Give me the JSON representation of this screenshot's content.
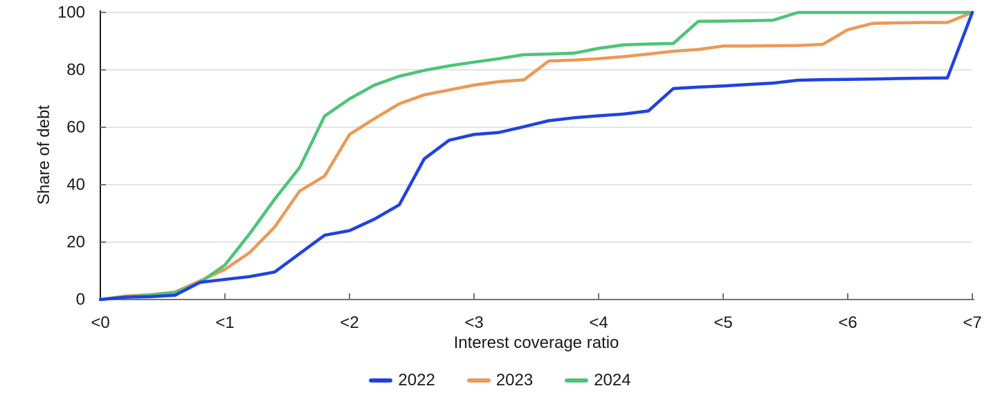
{
  "chart_data": {
    "type": "line",
    "title": "",
    "xlabel": "Interest coverage ratio",
    "ylabel": "Share of debt",
    "xlim": [
      0,
      7
    ],
    "ylim": [
      0,
      100
    ],
    "x_ticks": [
      0,
      1,
      2,
      3,
      4,
      5,
      6,
      7
    ],
    "x_tick_labels": [
      "<0",
      "<1",
      "<2",
      "<3",
      "<4",
      "<5",
      "<6",
      "<7"
    ],
    "y_ticks": [
      0,
      20,
      40,
      60,
      80,
      100
    ],
    "y_tick_labels": [
      "0",
      "20",
      "40",
      "60",
      "80",
      "100"
    ],
    "grid": "horizontal",
    "legend_position": "bottom-center",
    "x": [
      0,
      0.2,
      0.4,
      0.6,
      0.8,
      1,
      1.2,
      1.4,
      1.6,
      1.8,
      2,
      2.2,
      2.4,
      2.6,
      2.8,
      3,
      3.2,
      3.4,
      3.6,
      3.8,
      4,
      4.2,
      4.4,
      4.6,
      4.8,
      5,
      5.2,
      5.4,
      5.6,
      5.8,
      6,
      6.2,
      6.4,
      6.6,
      6.8,
      7
    ],
    "series": [
      {
        "name": "2022",
        "color": "#2042e0",
        "values": [
          0,
          0.8,
          1,
          1.5,
          6,
          7,
          8,
          9.6,
          16,
          22.4,
          24,
          28,
          33,
          49,
          55.5,
          57.5,
          58.2,
          60.2,
          62.3,
          63.3,
          64,
          64.6,
          65.7,
          73.5,
          74,
          74.4,
          74.9,
          75.4,
          76.4,
          76.6,
          76.7,
          76.8,
          77,
          77.1,
          77.2,
          100
        ]
      },
      {
        "name": "2023",
        "color": "#eb9a57",
        "values": [
          0,
          1.2,
          1.7,
          2.6,
          6.5,
          10.5,
          16.4,
          25.3,
          37.8,
          43,
          57.5,
          63,
          68.2,
          71.3,
          73,
          74.7,
          75.9,
          76.5,
          83.1,
          83.4,
          83.9,
          84.6,
          85.5,
          86.5,
          87.1,
          88.3,
          88.3,
          88.4,
          88.5,
          88.9,
          94,
          96.2,
          96.4,
          96.5,
          96.5,
          100
        ]
      },
      {
        "name": "2024",
        "color": "#4dc478",
        "values": [
          0,
          0.9,
          1.5,
          2.4,
          6,
          12,
          23,
          35,
          46,
          63.9,
          69.9,
          74.7,
          77.8,
          79.8,
          81.4,
          82.7,
          83.9,
          85.3,
          85.5,
          85.8,
          87.5,
          88.7,
          89,
          89.2,
          96.9,
          97,
          97.1,
          97.3,
          100,
          100,
          100,
          100,
          100,
          100,
          100,
          100
        ]
      }
    ],
    "colors": {
      "grid": "#e4e4e4",
      "y_axis": "#1a1a1a",
      "x_axis": "#737373",
      "tick": "#737373",
      "text": "#1a1a1a"
    }
  }
}
